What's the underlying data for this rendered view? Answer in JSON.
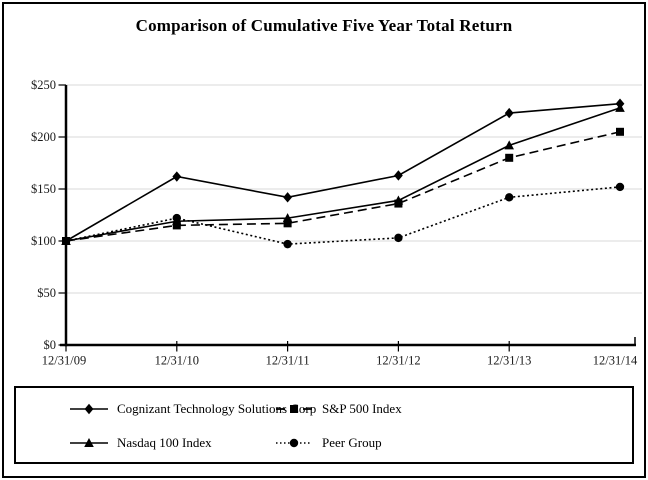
{
  "title": "Comparison of Cumulative Five Year Total Return",
  "chart_data": {
    "type": "line",
    "title": "Comparison of Cumulative Five Year Total Return",
    "categories": [
      "12/31/09",
      "12/31/10",
      "12/31/11",
      "12/31/12",
      "12/31/13",
      "12/31/14"
    ],
    "series": [
      {
        "name": "Cognizant Technology Solutions Corp",
        "values": [
          100,
          162,
          142,
          163,
          223,
          232
        ],
        "line": "solid",
        "marker": "diamond"
      },
      {
        "name": "S&P 500 Index",
        "values": [
          100,
          115,
          117,
          136,
          180,
          205
        ],
        "line": "dashed",
        "marker": "square"
      },
      {
        "name": "Nasdaq 100 Index",
        "values": [
          100,
          119,
          122,
          139,
          192,
          228
        ],
        "line": "solid",
        "marker": "triangle"
      },
      {
        "name": "Peer Group",
        "values": [
          100,
          122,
          97,
          103,
          142,
          152
        ],
        "line": "dotted",
        "marker": "circle"
      }
    ],
    "y_ticks": [
      "$0",
      "$50",
      "$100",
      "$150",
      "$200",
      "$250"
    ],
    "ylim": [
      0,
      250
    ],
    "xlabel": "",
    "ylabel": "",
    "grid": "horizontal",
    "legend_position": "bottom-box",
    "colors": {
      "line": "#000000",
      "grid": "#d9d9d9",
      "text": "#1a1a1a"
    }
  },
  "legend_order": [
    0,
    1,
    2,
    3
  ]
}
